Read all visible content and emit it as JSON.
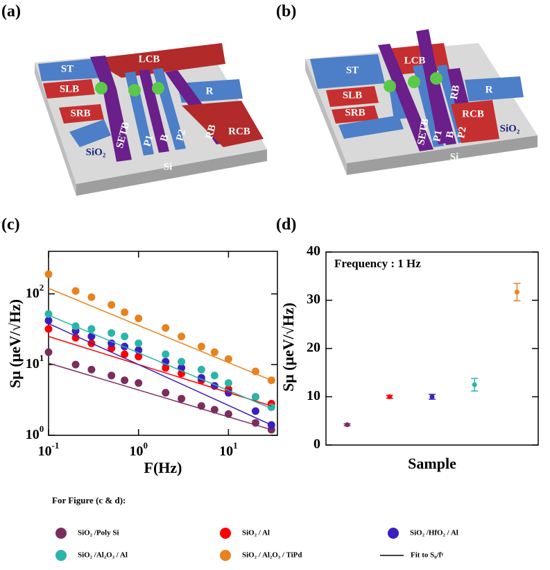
{
  "panels": [
    {
      "label": "(a)",
      "parts": [
        "ST",
        "LCB",
        "SLB",
        "SRB",
        "R",
        "SETB",
        "P1",
        "B",
        "P2",
        "RB",
        "RCB",
        "SiO₂",
        "Si"
      ]
    },
    {
      "label": "(b)",
      "parts": [
        "ST",
        "LCB",
        "SLB",
        "SRB",
        "RB",
        "R",
        "RCB",
        "SETB",
        "P1",
        "B",
        "P2",
        "SiO₂",
        "Si"
      ]
    }
  ],
  "legend_title": "For Figure (c & d):",
  "chart_data": [
    {
      "type": "scatter",
      "label": "(c)",
      "log_x": true,
      "log_y": true,
      "xlabel": "F(Hz)",
      "ylabel": "Sμ (μeV/√Hz)",
      "x": [
        0.1,
        0.2,
        0.3,
        0.5,
        0.7,
        1,
        2,
        3,
        5,
        7,
        10,
        20,
        30
      ],
      "fit_name": "Fit to S₀/fᵞ",
      "fit_color": "#000000",
      "fit_x": [
        0.1,
        30
      ],
      "series": [
        {
          "name": "SiO₂ /Poly Si",
          "color": "#7b2d5e",
          "values": [
            15,
            10,
            8.5,
            7,
            6,
            5.5,
            4,
            3.3,
            2.6,
            2.3,
            2,
            1.5,
            1.2
          ],
          "fit_values": [
            10.5,
            1.2
          ]
        },
        {
          "name": "SiO₂ / Al",
          "color": "#ff0000",
          "values": [
            32,
            24,
            20,
            17,
            14,
            13,
            9,
            7.5,
            6,
            5,
            4.5,
            3.5,
            2.8
          ],
          "fit_values": [
            25,
            2.6
          ]
        },
        {
          "name": "SiO₂ /HfO₂ / Al",
          "color": "#3a1fc0",
          "values": [
            42,
            30,
            25,
            20,
            18,
            16,
            11,
            9,
            6.5,
            5,
            4,
            2.2,
            1.4
          ],
          "fit_values": [
            38,
            1.4
          ]
        },
        {
          "name": "SiO₂ /Al₂O₃ / Al",
          "color": "#2ab5a8",
          "values": [
            52,
            35,
            32,
            28,
            25,
            20,
            14,
            11,
            8.5,
            7,
            5.5,
            3.5,
            2.5
          ],
          "fit_values": [
            50,
            2.4
          ]
        },
        {
          "name": "SiO₂ / Al₂O₃ / TiPd",
          "color": "#e8821e",
          "values": [
            190,
            110,
            90,
            70,
            55,
            45,
            33,
            25,
            18,
            15,
            12,
            8,
            6
          ],
          "fit_values": [
            120,
            6
          ]
        }
      ],
      "xlim": [
        0.1,
        35
      ],
      "ylim": [
        1,
        400
      ],
      "xticks": [
        {
          "value": 0.1,
          "label": "10",
          "exponent": "-1"
        },
        {
          "value": 1,
          "label": "10",
          "exponent": "0"
        },
        {
          "value": 10,
          "label": "10",
          "exponent": "1"
        }
      ],
      "yticks": [
        {
          "value": 1,
          "label": "10",
          "exponent": "0"
        },
        {
          "value": 10,
          "label": "10",
          "exponent": "1"
        },
        {
          "value": 100,
          "label": "10",
          "exponent": "2"
        }
      ]
    },
    {
      "type": "errorbar",
      "label": "(d)",
      "annotation": "Frequency : 1 Hz",
      "xlabel": "Sample",
      "ylabel": "Sμ (μeV/√Hz)",
      "categories": [
        null,
        null,
        null,
        null,
        null
      ],
      "values": [
        4.2,
        10,
        10,
        12.5,
        31.7
      ],
      "errors": [
        0.2,
        0.3,
        0.5,
        1.3,
        1.8
      ],
      "colors": [
        "#7b2d5e",
        "#ff0000",
        "#3a1fc0",
        "#2ab5a8",
        "#e8821e"
      ],
      "ylim": [
        0,
        40
      ],
      "yticks": [
        0,
        10,
        20,
        30,
        40
      ]
    }
  ]
}
